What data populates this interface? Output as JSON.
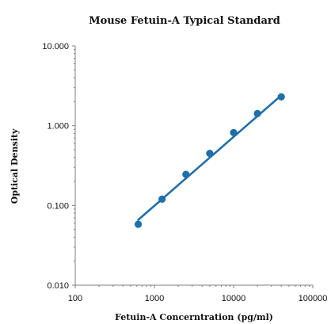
{
  "chart_data": {
    "type": "scatter",
    "title": "Mouse Fetuin-A Typical Standard",
    "xlabel": "Fetuin-A Concerntration (pg/ml)",
    "ylabel": "Optical Density",
    "x_scale": "log",
    "y_scale": "log",
    "xlim": [
      100,
      100000
    ],
    "ylim": [
      0.01,
      10
    ],
    "x_ticks": [
      100,
      1000,
      10000,
      100000
    ],
    "x_tick_labels": [
      "100",
      "1000",
      "10000",
      "100000"
    ],
    "y_ticks": [
      0.01,
      0.1,
      1,
      10
    ],
    "y_tick_labels": [
      "0.010",
      "0.100",
      "1.000",
      "10.000"
    ],
    "grid": false,
    "legend": "none",
    "series": [
      {
        "x": [
          625,
          1250,
          2500,
          5000,
          10000,
          20000,
          40000
        ],
        "y": [
          0.058,
          0.12,
          0.245,
          0.45,
          0.82,
          1.42,
          2.3
        ],
        "color": "#1f6fa8"
      }
    ],
    "trendline": {
      "type": "power",
      "x_range": [
        625,
        40000
      ],
      "y_range": [
        0.066,
        2.4
      ],
      "color": "#1f6fa8"
    }
  }
}
